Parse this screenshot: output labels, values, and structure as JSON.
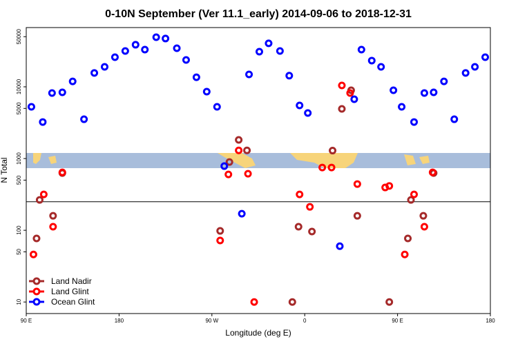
{
  "chart_data": {
    "type": "scatter",
    "title": "0-10N September (Ver 11.1_early)   2014-09-06 to 2018-12-31",
    "x_label": "Longitude (deg E)",
    "y_label": "N Total",
    "log_y": true,
    "xlim": [
      90,
      540
    ],
    "ylim": [
      6.9,
      67000
    ],
    "xticks": [
      {
        "value": 90,
        "label": "90 E"
      },
      {
        "value": 180,
        "label": "180"
      },
      {
        "value": 270,
        "label": "90 W"
      },
      {
        "value": 360,
        "label": "0"
      },
      {
        "value": 450,
        "label": "90 E"
      },
      {
        "value": 540,
        "label": "180"
      }
    ],
    "yticks": [
      10,
      50,
      100,
      500,
      1000,
      5000,
      10000,
      50000
    ],
    "hline": 250,
    "legend": "bottom-left",
    "series": [
      {
        "name": "Land Nadir",
        "color": "#a52a2a",
        "x": [
          103,
          100,
          116,
          125,
          278,
          287,
          296,
          304,
          348,
          354,
          367,
          387,
          396,
          405,
          411,
          442,
          460,
          463,
          475,
          485
        ],
        "values": [
          265,
          77,
          159,
          628,
          98,
          895,
          1820,
          1300,
          10,
          112,
          96,
          1290,
          4920,
          8950,
          159,
          10,
          77,
          265,
          159,
          628
        ]
      },
      {
        "name": "Land Glint",
        "color": "#ff0000",
        "x": [
          97,
          107,
          116,
          125,
          278,
          286,
          296,
          305,
          311,
          355,
          365,
          377,
          386,
          396,
          404,
          411,
          438,
          442,
          457,
          466,
          476,
          484
        ],
        "values": [
          46,
          316,
          112,
          642,
          72,
          601,
          1300,
          614,
          10,
          316,
          212,
          750,
          750,
          10450,
          8190,
          441,
          395,
          415,
          46,
          316,
          112,
          642
        ]
      },
      {
        "name": "Ocean Glint",
        "color": "#0000ff",
        "x": [
          95,
          106,
          115,
          125,
          135,
          146,
          156,
          166,
          176,
          186,
          196,
          205,
          216,
          225,
          236,
          245,
          255,
          265,
          275,
          282,
          299,
          306,
          316,
          325,
          336,
          345,
          355,
          363,
          394,
          408,
          415,
          425,
          434,
          446,
          454,
          466,
          476,
          485,
          495,
          505,
          516,
          525,
          535
        ],
        "values": [
          5260,
          3230,
          8190,
          8370,
          11900,
          3530,
          15600,
          19000,
          25900,
          31600,
          38600,
          33000,
          49200,
          47100,
          34500,
          23700,
          13600,
          8570,
          5260,
          784,
          170,
          14900,
          30900,
          40400,
          31600,
          14300,
          5500,
          4310,
          60,
          6710,
          33000,
          23200,
          19000,
          8950,
          5260,
          3230,
          8190,
          8370,
          11900,
          3530,
          15600,
          19000,
          25900
        ]
      }
    ]
  }
}
